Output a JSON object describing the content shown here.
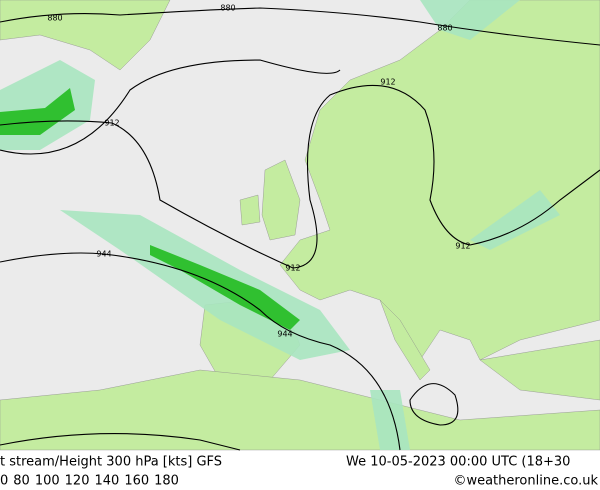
{
  "map": {
    "contour_labels": [
      880,
      880,
      880,
      912,
      912,
      912,
      912,
      944,
      944
    ]
  },
  "footer": {
    "title": "t stream/Height 300 hPa [kts] GFS",
    "datetime": "We 10-05-2023 00:00 UTC (18+30",
    "legend": [
      {
        "label": "0",
        "color": "#a0e6a0"
      },
      {
        "label": "80",
        "color": "#64cc64"
      },
      {
        "label": "100",
        "color": "#00b400"
      },
      {
        "label": "120",
        "color": "#c8c800"
      },
      {
        "label": "140",
        "color": "#f0a000"
      },
      {
        "label": "160",
        "color": "#f06400"
      },
      {
        "label": "180",
        "color": "#e00000"
      }
    ],
    "credit": "©weatheronline.co.uk"
  }
}
